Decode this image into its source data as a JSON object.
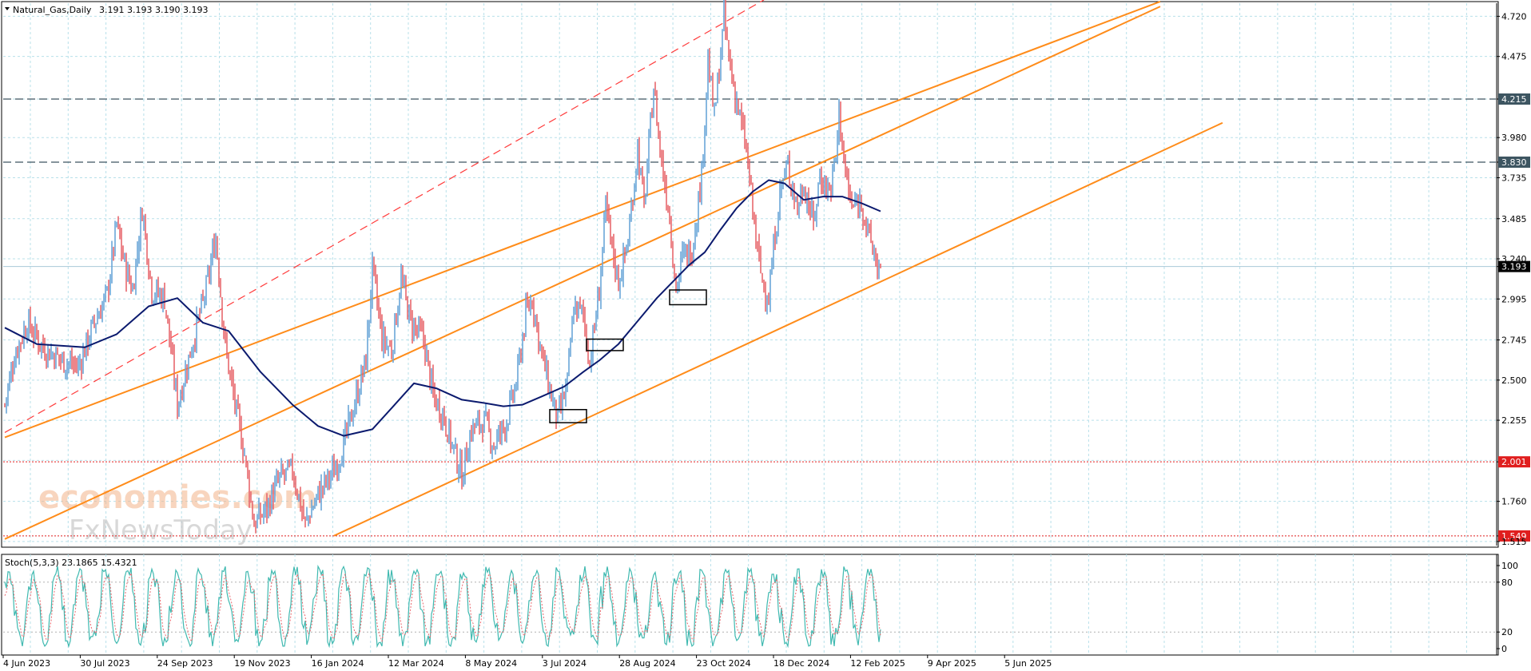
{
  "header": {
    "title": "Natural_Gas,Daily",
    "ohlc": "3.191 3.193 3.190 3.193"
  },
  "watermark": {
    "line1": "economies.com",
    "line2": "FxNewsToday"
  },
  "colors": {
    "bull_candle": "#6aa6d8",
    "bear_candle": "#e8676d",
    "ma": "#0b1a6e",
    "channel": "#ff8c1a",
    "channel_dashed": "#ff3b3b",
    "level_dark": "#3d5561",
    "level_red": "#e01e1e",
    "grid": "#b8e0ea",
    "stoch_main": "#3fb9b0",
    "stoch_signal": "#e8676d"
  },
  "chart_data": [
    {
      "type": "candlestick",
      "symbol": "Natural_Gas",
      "timeframe": "Daily",
      "x_tick_labels": [
        "4 Jun 2023",
        "30 Jul 2023",
        "24 Sep 2023",
        "19 Nov 2023",
        "16 Jan 2024",
        "12 Mar 2024",
        "8 May 2024",
        "3 Jul 2024",
        "28 Aug 2024",
        "23 Oct 2024",
        "18 Dec 2024",
        "12 Feb 2025",
        "9 Apr 2025",
        "5 Jun 2025"
      ],
      "y_tick_labels": [
        "4.720",
        "4.475",
        "4.215",
        "3.980",
        "3.830",
        "3.735",
        "3.485",
        "3.240",
        "3.193",
        "2.995",
        "2.745",
        "2.500",
        "2.255",
        "2.001",
        "1.760",
        "1.549",
        "1.515"
      ],
      "ylim": [
        1.49,
        4.8
      ],
      "price_path": [
        [
          0,
          2.35
        ],
        [
          6,
          2.65
        ],
        [
          14,
          2.85
        ],
        [
          24,
          2.7
        ],
        [
          36,
          2.62
        ],
        [
          46,
          2.58
        ],
        [
          56,
          2.85
        ],
        [
          64,
          3.02
        ],
        [
          70,
          3.45
        ],
        [
          75,
          3.2
        ],
        [
          80,
          3.05
        ],
        [
          86,
          3.55
        ],
        [
          92,
          3.05
        ],
        [
          100,
          3.0
        ],
        [
          108,
          2.35
        ],
        [
          118,
          2.75
        ],
        [
          126,
          3.05
        ],
        [
          132,
          3.38
        ],
        [
          138,
          2.7
        ],
        [
          144,
          2.35
        ],
        [
          150,
          2.05
        ],
        [
          156,
          1.62
        ],
        [
          164,
          1.72
        ],
        [
          172,
          1.9
        ],
        [
          180,
          1.95
        ],
        [
          188,
          1.62
        ],
        [
          196,
          1.8
        ],
        [
          206,
          1.95
        ],
        [
          212,
          2.1
        ],
        [
          220,
          2.4
        ],
        [
          226,
          2.62
        ],
        [
          230,
          3.18
        ],
        [
          236,
          2.75
        ],
        [
          242,
          2.68
        ],
        [
          248,
          3.12
        ],
        [
          254,
          2.85
        ],
        [
          262,
          2.75
        ],
        [
          268,
          2.4
        ],
        [
          274,
          2.3
        ],
        [
          280,
          2.1
        ],
        [
          286,
          1.92
        ],
        [
          292,
          2.2
        ],
        [
          300,
          2.25
        ],
        [
          306,
          2.1
        ],
        [
          314,
          2.25
        ],
        [
          320,
          2.48
        ],
        [
          326,
          2.9
        ],
        [
          330,
          3.0
        ],
        [
          336,
          2.65
        ],
        [
          342,
          2.4
        ],
        [
          346,
          2.25
        ],
        [
          352,
          2.48
        ],
        [
          356,
          2.95
        ],
        [
          362,
          2.9
        ],
        [
          366,
          2.6
        ],
        [
          372,
          3.05
        ],
        [
          376,
          3.55
        ],
        [
          380,
          3.3
        ],
        [
          384,
          3.1
        ],
        [
          390,
          3.35
        ],
        [
          396,
          3.92
        ],
        [
          400,
          3.55
        ],
        [
          406,
          4.3
        ],
        [
          410,
          3.9
        ],
        [
          416,
          3.5
        ],
        [
          420,
          3.05
        ],
        [
          424,
          3.25
        ],
        [
          430,
          3.3
        ],
        [
          436,
          3.75
        ],
        [
          440,
          4.45
        ],
        [
          444,
          4.1
        ],
        [
          450,
          4.7
        ],
        [
          454,
          4.4
        ],
        [
          458,
          4.2
        ],
        [
          464,
          3.9
        ],
        [
          470,
          3.35
        ],
        [
          474,
          3.1
        ],
        [
          478,
          3.0
        ],
        [
          482,
          3.4
        ],
        [
          486,
          3.7
        ],
        [
          490,
          3.8
        ],
        [
          496,
          3.55
        ],
        [
          500,
          3.7
        ],
        [
          506,
          3.45
        ],
        [
          510,
          3.75
        ],
        [
          516,
          3.65
        ],
        [
          520,
          3.85
        ],
        [
          522,
          4.15
        ],
        [
          526,
          3.75
        ],
        [
          530,
          3.55
        ],
        [
          536,
          3.6
        ],
        [
          540,
          3.4
        ],
        [
          546,
          3.2
        ],
        [
          548,
          3.193
        ]
      ],
      "moving_average": {
        "color": "#0b1a6e",
        "path": [
          [
            0,
            2.82
          ],
          [
            20,
            2.72
          ],
          [
            50,
            2.7
          ],
          [
            70,
            2.78
          ],
          [
            90,
            2.95
          ],
          [
            108,
            3.0
          ],
          [
            124,
            2.85
          ],
          [
            140,
            2.8
          ],
          [
            160,
            2.55
          ],
          [
            180,
            2.35
          ],
          [
            196,
            2.22
          ],
          [
            212,
            2.16
          ],
          [
            230,
            2.2
          ],
          [
            244,
            2.35
          ],
          [
            256,
            2.48
          ],
          [
            270,
            2.45
          ],
          [
            286,
            2.38
          ],
          [
            300,
            2.36
          ],
          [
            312,
            2.34
          ],
          [
            324,
            2.35
          ],
          [
            336,
            2.4
          ],
          [
            350,
            2.46
          ],
          [
            362,
            2.55
          ],
          [
            372,
            2.62
          ],
          [
            384,
            2.72
          ],
          [
            396,
            2.86
          ],
          [
            408,
            3.0
          ],
          [
            418,
            3.1
          ],
          [
            428,
            3.2
          ],
          [
            438,
            3.28
          ],
          [
            448,
            3.42
          ],
          [
            458,
            3.55
          ],
          [
            468,
            3.65
          ],
          [
            478,
            3.72
          ],
          [
            488,
            3.7
          ],
          [
            500,
            3.6
          ],
          [
            512,
            3.62
          ],
          [
            524,
            3.62
          ],
          [
            536,
            3.58
          ],
          [
            548,
            3.53
          ]
        ]
      },
      "channel_lines": [
        {
          "style": "solid",
          "color": "#ff8c1a",
          "from": [
            0,
            1.53
          ],
          "to": [
            723,
            4.78
          ]
        },
        {
          "style": "solid",
          "color": "#ff8c1a",
          "from": [
            0,
            2.15
          ],
          "to": [
            723,
            4.81
          ]
        },
        {
          "style": "solid",
          "color": "#ff8c1a",
          "from": [
            206,
            1.55
          ],
          "to": [
            762,
            4.07
          ]
        },
        {
          "style": "dashed",
          "color": "#ff3b3b",
          "from": [
            0,
            2.18
          ],
          "to": [
            475,
            4.82
          ]
        }
      ],
      "horizontal_levels": [
        {
          "value": 4.215,
          "label": "4.215",
          "style": "dashed",
          "color": "#3d5561"
        },
        {
          "value": 3.83,
          "label": "3.830",
          "style": "dashed",
          "color": "#3d5561"
        },
        {
          "value": 3.193,
          "label": "3.193",
          "style": "solid-light",
          "color": "#a8c8d8"
        },
        {
          "value": 2.001,
          "label": "2.001",
          "style": "dotted",
          "color": "#e01e1e"
        },
        {
          "value": 1.549,
          "label": "1.549",
          "style": "dotted",
          "color": "#e01e1e"
        }
      ],
      "highlight_boxes": [
        {
          "from_bar": 341,
          "to_bar": 364,
          "low": 2.24,
          "high": 2.32
        },
        {
          "from_bar": 364,
          "to_bar": 387,
          "low": 2.68,
          "high": 2.75
        },
        {
          "from_bar": 416,
          "to_bar": 439,
          "low": 2.96,
          "high": 3.05
        }
      ]
    },
    {
      "type": "line",
      "indicator": "Stoch(5,3,3)",
      "title": "Stoch(5,3,3) 23.1865 15.4321",
      "values": {
        "main": 23.1865,
        "signal": 15.4321
      },
      "y_tick_labels": [
        "100",
        "80",
        "20",
        "0"
      ],
      "ylim": [
        0,
        100
      ],
      "levels": [
        80,
        20
      ]
    }
  ]
}
